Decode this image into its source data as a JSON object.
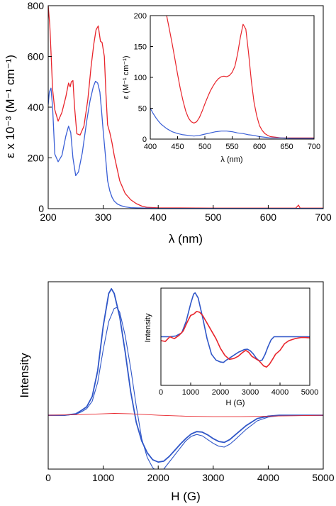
{
  "chart_data": [
    {
      "id": "uv",
      "type": "line",
      "xlabel": "λ (nm)",
      "ylabel": "ε x 10⁻³ (M⁻¹ cm⁻¹)",
      "xlim": [
        200,
        700
      ],
      "ylim": [
        0,
        800
      ],
      "xticks": [
        "200",
        "300",
        "400",
        "500",
        "600",
        "700"
      ],
      "yticks": [
        "0",
        "200",
        "400",
        "600",
        "800"
      ],
      "series": [
        {
          "color": "#e8242b",
          "x": [
            200,
            203,
            205,
            208,
            212,
            218,
            225,
            232,
            237,
            240,
            242,
            245,
            248,
            252,
            258,
            265,
            272,
            278,
            283,
            287,
            291,
            295,
            298,
            302,
            305,
            308,
            312,
            316,
            320,
            325,
            330,
            340,
            350,
            360,
            370,
            380,
            400,
            500,
            600,
            650,
            655,
            658,
            660,
            700
          ],
          "y": [
            800,
            720,
            620,
            470,
            390,
            345,
            380,
            440,
            495,
            480,
            500,
            505,
            400,
            295,
            290,
            325,
            430,
            560,
            650,
            705,
            720,
            660,
            655,
            600,
            450,
            330,
            300,
            260,
            210,
            160,
            110,
            60,
            35,
            20,
            10,
            5,
            3,
            2,
            2,
            2,
            14,
            2,
            2,
            2
          ]
        },
        {
          "color": "#3a5fd6",
          "x": [
            200,
            202,
            205,
            208,
            212,
            218,
            225,
            232,
            237,
            241,
            245,
            250,
            255,
            262,
            270,
            276,
            282,
            286,
            290,
            294,
            297,
            300,
            304,
            308,
            312,
            316,
            320,
            326,
            332,
            340,
            350,
            360,
            380,
            400,
            500,
            600,
            700
          ],
          "y": [
            410,
            460,
            475,
            400,
            215,
            185,
            210,
            285,
            325,
            300,
            200,
            130,
            145,
            220,
            345,
            425,
            480,
            502,
            495,
            460,
            385,
            305,
            210,
            110,
            70,
            45,
            30,
            18,
            12,
            7,
            4,
            3,
            2,
            1,
            1,
            1,
            1
          ]
        }
      ]
    },
    {
      "id": "uv-inset",
      "type": "line",
      "xlabel": "λ (nm)",
      "ylabel": "ε (M⁻¹ cm⁻¹)",
      "xlim": [
        400,
        700
      ],
      "ylim": [
        0,
        200
      ],
      "xticks": [
        "400",
        "450",
        "500",
        "550",
        "600",
        "650",
        "700"
      ],
      "yticks": [
        "0",
        "50",
        "100",
        "150",
        "200"
      ],
      "series": [
        {
          "color": "#e8242b",
          "x": [
            430,
            435,
            440,
            445,
            450,
            455,
            460,
            465,
            470,
            475,
            480,
            485,
            490,
            495,
            500,
            505,
            510,
            515,
            520,
            525,
            530,
            535,
            540,
            545,
            550,
            555,
            560,
            565,
            570,
            575,
            580,
            585,
            590,
            595,
            600,
            605,
            610,
            615,
            620,
            630,
            640,
            650,
            660,
            680,
            700
          ],
          "y": [
            200,
            178,
            155,
            130,
            105,
            82,
            62,
            45,
            34,
            28,
            26,
            28,
            35,
            45,
            57,
            68,
            78,
            86,
            93,
            98,
            101,
            102,
            101,
            103,
            108,
            118,
            138,
            165,
            186,
            178,
            140,
            95,
            60,
            38,
            22,
            14,
            9,
            6,
            4,
            3,
            2,
            2,
            2,
            2,
            2
          ]
        },
        {
          "color": "#3a5fd6",
          "x": [
            400,
            405,
            410,
            415,
            420,
            430,
            440,
            450,
            460,
            470,
            480,
            490,
            500,
            510,
            520,
            530,
            540,
            550,
            560,
            570,
            580,
            590,
            600,
            610,
            620,
            640,
            660,
            680,
            700
          ],
          "y": [
            50,
            42,
            35,
            29,
            24,
            17,
            12,
            9,
            7,
            6,
            5,
            6,
            8,
            10,
            12,
            13,
            13,
            12,
            10,
            9,
            7,
            6,
            4,
            3,
            2,
            2,
            1,
            1,
            1
          ]
        }
      ]
    },
    {
      "id": "epr",
      "type": "line",
      "xlabel": "H (G)",
      "ylabel": "Intensity",
      "xlim": [
        0,
        5000
      ],
      "ylim": [
        -1.15,
        2.85
      ],
      "xticks": [
        "0",
        "1000",
        "2000",
        "3000",
        "4000",
        "5000"
      ],
      "series": [
        {
          "color": "#2f56c8",
          "x": [
            0,
            300,
            500,
            600,
            700,
            800,
            900,
            1000,
            1100,
            1150,
            1200,
            1300,
            1400,
            1500,
            1600,
            1700,
            1800,
            1900,
            2000,
            2100,
            2200,
            2300,
            2400,
            2500,
            2600,
            2700,
            2800,
            2900,
            3000,
            3100,
            3200,
            3300,
            3400,
            3600,
            3800,
            4000,
            4200,
            4500,
            5000
          ],
          "y": [
            0,
            0,
            0.03,
            0.1,
            0.18,
            0.4,
            0.95,
            1.9,
            2.6,
            2.7,
            2.6,
            2.1,
            1.35,
            0.5,
            -0.15,
            -0.55,
            -0.8,
            -0.95,
            -1.0,
            -0.98,
            -0.88,
            -0.75,
            -0.62,
            -0.5,
            -0.4,
            -0.35,
            -0.36,
            -0.42,
            -0.5,
            -0.56,
            -0.58,
            -0.52,
            -0.42,
            -0.22,
            -0.07,
            -0.02,
            0,
            0,
            0
          ]
        },
        {
          "color": "#2f56c8",
          "x": [
            0,
            300,
            500,
            600,
            700,
            800,
            900,
            1000,
            1100,
            1200,
            1250,
            1300,
            1400,
            1500,
            1600,
            1700,
            1800,
            1900,
            2000,
            2100,
            2200,
            2300,
            2400,
            2500,
            2600,
            2700,
            2800,
            2900,
            3000,
            3100,
            3200,
            3300,
            3400,
            3600,
            3800,
            4000,
            4200,
            4500,
            5000
          ],
          "y": [
            0,
            0,
            0.02,
            0.07,
            0.14,
            0.3,
            0.7,
            1.4,
            2.0,
            2.28,
            2.3,
            2.2,
            1.7,
            1.0,
            0.2,
            -0.5,
            -0.9,
            -1.12,
            -1.22,
            -1.15,
            -1.0,
            -0.85,
            -0.7,
            -0.55,
            -0.45,
            -0.41,
            -0.44,
            -0.52,
            -0.6,
            -0.66,
            -0.68,
            -0.62,
            -0.52,
            -0.3,
            -0.12,
            -0.04,
            -0.01,
            0,
            0
          ]
        },
        {
          "color": "#e8242b",
          "x": [
            0,
            500,
            1000,
            1200,
            1500,
            2000,
            2500,
            3000,
            3500,
            4000,
            4500,
            5000
          ],
          "y": [
            0,
            0.01,
            0.03,
            0.04,
            0.03,
            0.0,
            -0.02,
            -0.03,
            -0.03,
            -0.02,
            -0.01,
            0
          ]
        }
      ]
    },
    {
      "id": "epr-inset",
      "type": "line",
      "xlabel": "H (G)",
      "ylabel": "Intensity",
      "xlim": [
        0,
        5000
      ],
      "ylim": [
        -1.25,
        1.25
      ],
      "xticks": [
        "0",
        "1000",
        "2000",
        "3000",
        "4000",
        "5000"
      ],
      "series": [
        {
          "color": "#2f56c8",
          "x": [
            0,
            300,
            500,
            700,
            850,
            1000,
            1100,
            1150,
            1250,
            1400,
            1550,
            1700,
            1850,
            2000,
            2100,
            2200,
            2400,
            2600,
            2800,
            2900,
            3000,
            3100,
            3200,
            3300,
            3400,
            3500,
            3600,
            3700,
            3800,
            4000,
            5000
          ],
          "y": [
            0,
            0,
            0.02,
            0.1,
            0.4,
            0.85,
            1.1,
            1.13,
            1.0,
            0.5,
            -0.05,
            -0.45,
            -0.6,
            -0.65,
            -0.66,
            -0.6,
            -0.5,
            -0.4,
            -0.33,
            -0.32,
            -0.36,
            -0.44,
            -0.55,
            -0.62,
            -0.6,
            -0.45,
            -0.25,
            -0.08,
            0,
            0,
            0
          ]
        },
        {
          "color": "#e8242b",
          "x": [
            0,
            150,
            300,
            450,
            600,
            750,
            900,
            1000,
            1100,
            1200,
            1300,
            1400,
            1550,
            1700,
            1850,
            2000,
            2150,
            2300,
            2450,
            2600,
            2750,
            2850,
            2950,
            3050,
            3150,
            3300,
            3450,
            3550,
            3650,
            3750,
            3850,
            4000,
            4150,
            4300,
            4500,
            4700,
            4850,
            5000
          ],
          "y": [
            -0.1,
            -0.12,
            0.0,
            -0.05,
            0.03,
            0.15,
            0.4,
            0.55,
            0.58,
            0.65,
            0.63,
            0.55,
            0.35,
            0.15,
            -0.05,
            -0.3,
            -0.48,
            -0.58,
            -0.56,
            -0.5,
            -0.4,
            -0.35,
            -0.4,
            -0.5,
            -0.55,
            -0.62,
            -0.75,
            -0.78,
            -0.7,
            -0.58,
            -0.45,
            -0.35,
            -0.18,
            -0.1,
            -0.05,
            -0.02,
            -0.02,
            -0.03
          ]
        }
      ]
    }
  ]
}
